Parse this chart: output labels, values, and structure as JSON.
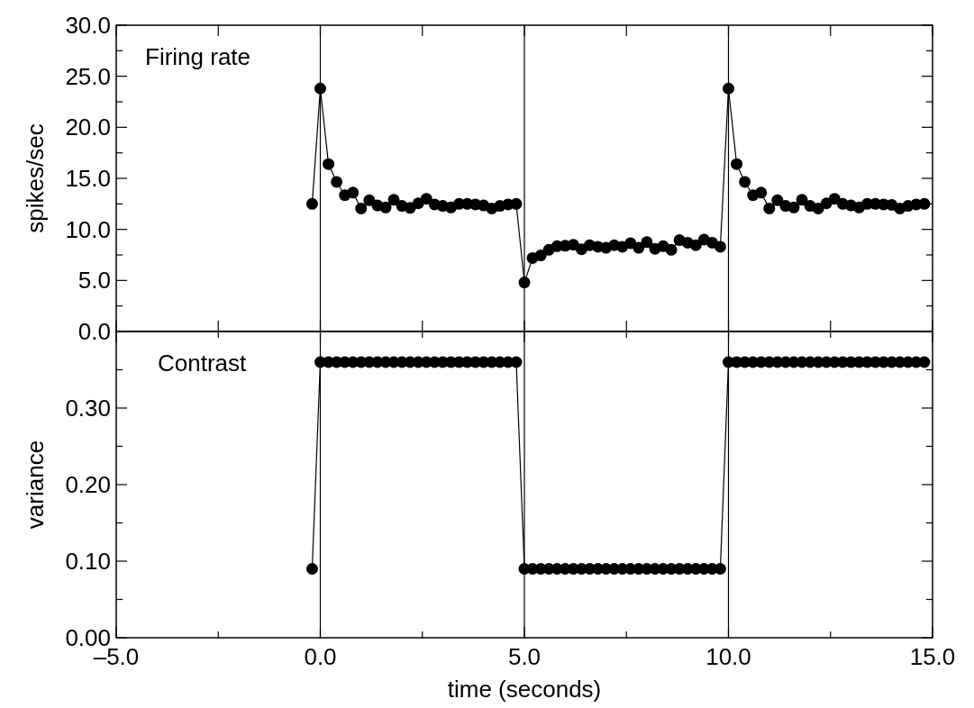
{
  "chart_data": [
    {
      "type": "line",
      "ylabel": "spikes/sec",
      "annotations": [
        "Firing rate"
      ],
      "marker": "circle",
      "tick_labels": "y",
      "grid": false,
      "xlim": [
        -5,
        15
      ],
      "xticks": [
        {
          "value": -5,
          "label": null
        },
        {
          "value": -2.5,
          "label": null
        },
        {
          "value": 0,
          "label": null
        },
        {
          "value": 2.5,
          "label": null
        },
        {
          "value": 5,
          "label": null
        },
        {
          "value": 7.5,
          "label": null
        },
        {
          "value": 10,
          "label": null
        },
        {
          "value": 12.5,
          "label": null
        },
        {
          "value": 15,
          "label": null
        }
      ],
      "ylim": [
        0,
        30
      ],
      "yticks": [
        {
          "value": 0,
          "label": "0.0"
        },
        {
          "value": 2.5,
          "label": null
        },
        {
          "value": 5,
          "label": "5.0"
        },
        {
          "value": 7.5,
          "label": null
        },
        {
          "value": 10,
          "label": "10.0"
        },
        {
          "value": 12.5,
          "label": null
        },
        {
          "value": 15,
          "label": "15.0"
        },
        {
          "value": 17.5,
          "label": null
        },
        {
          "value": 20,
          "label": "20.0"
        },
        {
          "value": 22.5,
          "label": null
        },
        {
          "value": 25,
          "label": "25.0"
        },
        {
          "value": 27.5,
          "label": null
        },
        {
          "value": 30,
          "label": "30.0"
        }
      ],
      "ref_lines": [
        {
          "axis": "x",
          "value": 0,
          "color": "#000000"
        },
        {
          "axis": "x",
          "value": 5,
          "color": "#000000"
        },
        {
          "axis": "x",
          "value": 10,
          "color": "#000000"
        }
      ],
      "x": [
        -0.2,
        0,
        0.2,
        0.4,
        0.6,
        0.8,
        1,
        1.2,
        1.4,
        1.6,
        1.8,
        2,
        2.2,
        2.4,
        2.6,
        2.8,
        3,
        3.2,
        3.4,
        3.6,
        3.8,
        4,
        4.2,
        4.4,
        4.6,
        4.8,
        5,
        5.2,
        5.4,
        5.6,
        5.8,
        6,
        6.2,
        6.4,
        6.6,
        6.8,
        7,
        7.2,
        7.4,
        7.6,
        7.8,
        8,
        8.2,
        8.4,
        8.6,
        8.8,
        9,
        9.2,
        9.4,
        9.6,
        9.8,
        10,
        10.2,
        10.4,
        10.6,
        10.8,
        11,
        11.2,
        11.4,
        11.6,
        11.8,
        12,
        12.2,
        12.4,
        12.6,
        12.8,
        13,
        13.2,
        13.4,
        13.6,
        13.8,
        14,
        14.2,
        14.4,
        14.6,
        14.8
      ],
      "series": [
        {
          "color": "#000000",
          "values": [
            12.5,
            23.8,
            16.4,
            14.65,
            13.35,
            13.6,
            12.05,
            12.85,
            12.35,
            12.15,
            12.9,
            12.3,
            12.1,
            12.55,
            13.0,
            12.45,
            12.3,
            12.15,
            12.5,
            12.5,
            12.45,
            12.35,
            12.05,
            12.3,
            12.45,
            12.5,
            4.8,
            7.2,
            7.45,
            8.0,
            8.35,
            8.4,
            8.5,
            8.05,
            8.45,
            8.3,
            8.2,
            8.45,
            8.3,
            8.65,
            8.2,
            8.75,
            8.1,
            8.35,
            8.0,
            8.95,
            8.7,
            8.45,
            9.0,
            8.7,
            8.3,
            23.8,
            16.4,
            14.65,
            13.35,
            13.6,
            12.05,
            12.85,
            12.3,
            12.15,
            12.9,
            12.3,
            12.05,
            12.55,
            13.0,
            12.5,
            12.35,
            12.15,
            12.5,
            12.5,
            12.45,
            12.4,
            12.05,
            12.3,
            12.45,
            12.5
          ]
        }
      ]
    },
    {
      "type": "line",
      "ylabel": "variance",
      "xlabel": "time (seconds)",
      "annotations": [
        "Contrast"
      ],
      "marker": "circle",
      "grid": false,
      "xlim": [
        -5,
        15
      ],
      "xticks": [
        {
          "value": -5,
          "label": "–5.0"
        },
        {
          "value": -2.5,
          "label": null
        },
        {
          "value": 0,
          "label": "0.0"
        },
        {
          "value": 2.5,
          "label": null
        },
        {
          "value": 5,
          "label": "5.0"
        },
        {
          "value": 7.5,
          "label": null
        },
        {
          "value": 10,
          "label": "10.0"
        },
        {
          "value": 12.5,
          "label": null
        },
        {
          "value": 15,
          "label": "15.0"
        }
      ],
      "ylim": [
        0,
        0.4
      ],
      "yticks": [
        {
          "value": 0,
          "label": "0.00"
        },
        {
          "value": 0.05,
          "label": null
        },
        {
          "value": 0.1,
          "label": "0.10"
        },
        {
          "value": 0.15,
          "label": null
        },
        {
          "value": 0.2,
          "label": "0.20"
        },
        {
          "value": 0.25,
          "label": null
        },
        {
          "value": 0.3,
          "label": "0.30"
        },
        {
          "value": 0.35,
          "label": null
        }
      ],
      "ref_lines": [
        {
          "axis": "x",
          "value": 0,
          "color": "#000000"
        },
        {
          "axis": "x",
          "value": 5,
          "color": "#000000"
        },
        {
          "axis": "x",
          "value": 10,
          "color": "#000000"
        }
      ],
      "x": [
        -0.2,
        0,
        0.2,
        0.4,
        0.6,
        0.8,
        1,
        1.2,
        1.4,
        1.6,
        1.8,
        2,
        2.2,
        2.4,
        2.6,
        2.8,
        3,
        3.2,
        3.4,
        3.6,
        3.8,
        4,
        4.2,
        4.4,
        4.6,
        4.8,
        5,
        5.2,
        5.4,
        5.6,
        5.8,
        6,
        6.2,
        6.4,
        6.6,
        6.8,
        7,
        7.2,
        7.4,
        7.6,
        7.8,
        8,
        8.2,
        8.4,
        8.6,
        8.8,
        9,
        9.2,
        9.4,
        9.6,
        9.8,
        10,
        10.2,
        10.4,
        10.6,
        10.8,
        11,
        11.2,
        11.4,
        11.6,
        11.8,
        12,
        12.2,
        12.4,
        12.6,
        12.8,
        13,
        13.2,
        13.4,
        13.6,
        13.8,
        14,
        14.2,
        14.4,
        14.6,
        14.8
      ],
      "series": [
        {
          "color": "#000000",
          "values": [
            0.09,
            0.36,
            0.36,
            0.36,
            0.36,
            0.36,
            0.36,
            0.36,
            0.36,
            0.36,
            0.36,
            0.36,
            0.36,
            0.36,
            0.36,
            0.36,
            0.36,
            0.36,
            0.36,
            0.36,
            0.36,
            0.36,
            0.36,
            0.36,
            0.36,
            0.36,
            0.09,
            0.09,
            0.09,
            0.09,
            0.09,
            0.09,
            0.09,
            0.09,
            0.09,
            0.09,
            0.09,
            0.09,
            0.09,
            0.09,
            0.09,
            0.09,
            0.09,
            0.09,
            0.09,
            0.09,
            0.09,
            0.09,
            0.09,
            0.09,
            0.09,
            0.36,
            0.36,
            0.36,
            0.36,
            0.36,
            0.36,
            0.36,
            0.36,
            0.36,
            0.36,
            0.36,
            0.36,
            0.36,
            0.36,
            0.36,
            0.36,
            0.36,
            0.36,
            0.36,
            0.36,
            0.36,
            0.36,
            0.36,
            0.36,
            0.36
          ]
        }
      ]
    }
  ]
}
